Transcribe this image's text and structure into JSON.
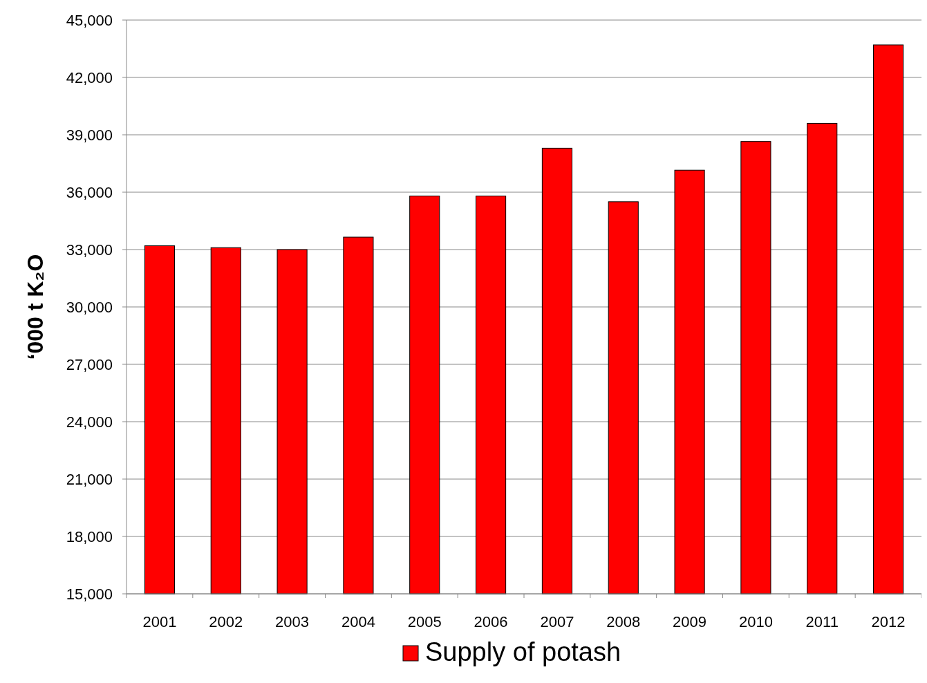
{
  "chart_data": {
    "type": "bar",
    "ylabel": "‘000 t K₂O",
    "categories": [
      "2001",
      "2002",
      "2003",
      "2004",
      "2005",
      "2006",
      "2007",
      "2008",
      "2009",
      "2010",
      "2011",
      "2012"
    ],
    "series": [
      {
        "name": "Supply of potash",
        "color": "#ff0000",
        "values": [
          33200,
          33100,
          33000,
          33650,
          35800,
          35800,
          38300,
          35500,
          37150,
          38650,
          39600,
          43700
        ]
      }
    ],
    "ylim": [
      15000,
      45000
    ],
    "yticks": [
      {
        "value": 15000,
        "label": "15,000"
      },
      {
        "value": 18000,
        "label": "18,000"
      },
      {
        "value": 21000,
        "label": "21,000"
      },
      {
        "value": 24000,
        "label": "24,000"
      },
      {
        "value": 27000,
        "label": "27,000"
      },
      {
        "value": 30000,
        "label": "30,000"
      },
      {
        "value": 33000,
        "label": "33,000"
      },
      {
        "value": 36000,
        "label": "36,000"
      },
      {
        "value": 39000,
        "label": "39,000"
      },
      {
        "value": 42000,
        "label": "42,000"
      },
      {
        "value": 45000,
        "label": "45,000"
      }
    ],
    "grid": "y",
    "legend": "bottom"
  }
}
